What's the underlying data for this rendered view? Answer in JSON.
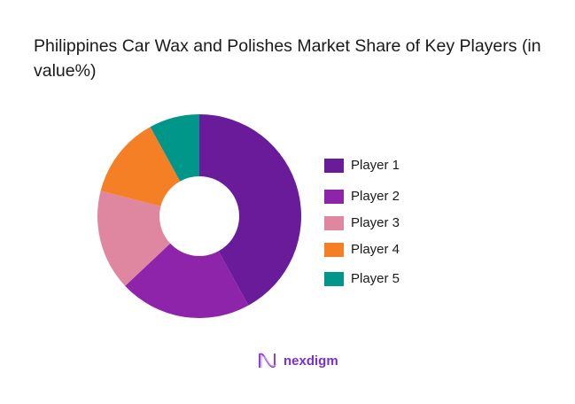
{
  "title": " Philippines Car Wax and Polishes Market Share of Key Players (in value%)",
  "chart_data": {
    "type": "pie",
    "subtype": "donut",
    "title": "Philippines Car Wax and Polishes Market Share of Key Players (in value%)",
    "categories": [
      "Player 1",
      "Player 2",
      "Player 3",
      "Player 4",
      "Player 5"
    ],
    "values": [
      42,
      21,
      16,
      13,
      8
    ],
    "colors": [
      "#6a1b9a",
      "#8e24aa",
      "#df86a0",
      "#f47f24",
      "#00968a"
    ],
    "legend_position": "right",
    "data_labels": false
  },
  "legend": [
    {
      "label": "Player 1",
      "color": "#6a1b9a"
    },
    {
      "label": "Player 2",
      "color": "#8e24aa"
    },
    {
      "label": "Player 3",
      "color": "#df86a0"
    },
    {
      "label": "Player 4",
      "color": "#f47f24"
    },
    {
      "label": "Player 5",
      "color": "#00968a"
    }
  ],
  "logo": {
    "text": "nexdigm"
  }
}
